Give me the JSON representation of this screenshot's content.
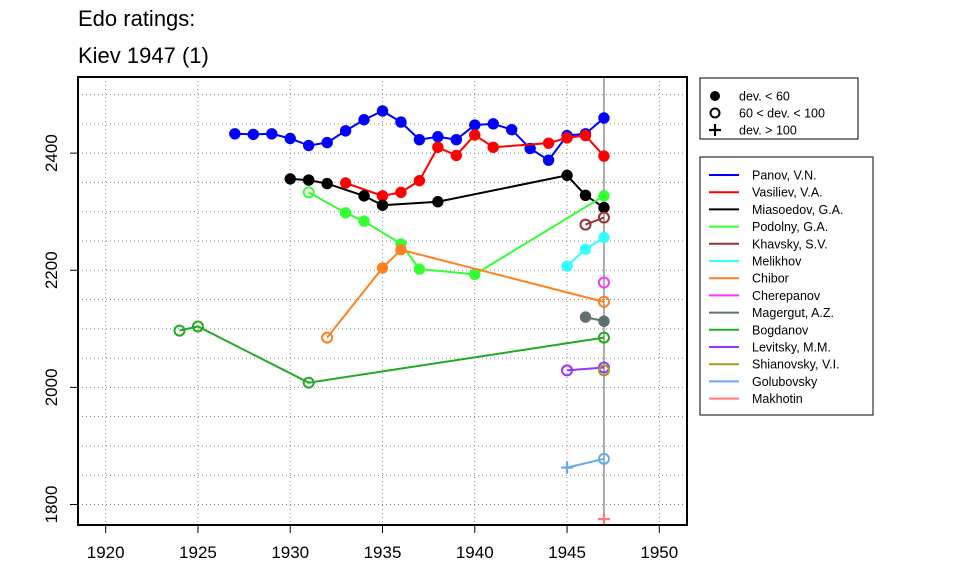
{
  "chart_data": {
    "type": "line",
    "title": [
      "Edo ratings:",
      "Kiev 1947 (1)"
    ],
    "xlabel": "",
    "ylabel": "",
    "xlim": [
      1918.5,
      1951.5
    ],
    "ylim": [
      1765,
      2530
    ],
    "x_ticks": [
      1920,
      1925,
      1930,
      1935,
      1940,
      1945,
      1950
    ],
    "y_ticks": [
      1800,
      2000,
      2200,
      2400
    ],
    "grid": "dotted",
    "vline_x": 1947,
    "legend_marker_placement": "top-right outside",
    "legend_marker": [
      {
        "label": "dev. < 60",
        "marker": "filled-circle"
      },
      {
        "label": "60 < dev. < 100",
        "marker": "open-circle"
      },
      {
        "label": "dev. > 100",
        "marker": "plus"
      }
    ],
    "legend_players_placement": "right outside",
    "series": [
      {
        "name": "Panov, V.N.",
        "color": "#0000ff",
        "points": [
          [
            1927,
            2433,
            "f"
          ],
          [
            1928,
            2432,
            "f"
          ],
          [
            1929,
            2433,
            "f"
          ],
          [
            1930,
            2425,
            "f"
          ],
          [
            1931,
            2413,
            "f"
          ],
          [
            1932,
            2418,
            "f"
          ],
          [
            1933,
            2438,
            "f"
          ],
          [
            1934,
            2457,
            "f"
          ],
          [
            1935,
            2472,
            "f"
          ],
          [
            1936,
            2453,
            "f"
          ],
          [
            1937,
            2423,
            "f"
          ],
          [
            1938,
            2428,
            "f"
          ],
          [
            1939,
            2423,
            "f"
          ],
          [
            1940,
            2448,
            "f"
          ],
          [
            1941,
            2450,
            "f"
          ],
          [
            1942,
            2440,
            "f"
          ],
          [
            1943,
            2408,
            "f"
          ],
          [
            1944,
            2388,
            "f"
          ],
          [
            1945,
            2430,
            "f"
          ],
          [
            1946,
            2433,
            "f"
          ],
          [
            1947,
            2460,
            "f"
          ]
        ]
      },
      {
        "name": "Vasiliev, V.A.",
        "color": "#ff0000",
        "points": [
          [
            1933,
            2349,
            "f"
          ],
          [
            1935,
            2327,
            "f"
          ],
          [
            1936,
            2333,
            "f"
          ],
          [
            1937,
            2353,
            "f"
          ],
          [
            1938,
            2410,
            "f"
          ],
          [
            1939,
            2396,
            "f"
          ],
          [
            1940,
            2431,
            "f"
          ],
          [
            1941,
            2410,
            "f"
          ],
          [
            1944,
            2417,
            "f"
          ],
          [
            1945,
            2426,
            "f"
          ],
          [
            1946,
            2430,
            "f"
          ],
          [
            1947,
            2395,
            "f"
          ]
        ]
      },
      {
        "name": "Miasoedov, G.A.",
        "color": "#000000",
        "points": [
          [
            1930,
            2356,
            "f"
          ],
          [
            1931,
            2354,
            "f"
          ],
          [
            1932,
            2348,
            "f"
          ],
          [
            1934,
            2327,
            "f"
          ],
          [
            1935,
            2311,
            "f"
          ],
          [
            1938,
            2317,
            "f"
          ],
          [
            1945,
            2362,
            "f"
          ],
          [
            1946,
            2328,
            "f"
          ],
          [
            1947,
            2307,
            "f"
          ]
        ]
      },
      {
        "name": "Podolny, G.A.",
        "color": "#33ff33",
        "points": [
          [
            1931,
            2333,
            "o"
          ],
          [
            1933,
            2298,
            "f"
          ],
          [
            1934,
            2284,
            "f"
          ],
          [
            1936,
            2245,
            "f"
          ],
          [
            1937,
            2202,
            "f"
          ],
          [
            1940,
            2193,
            "f"
          ],
          [
            1947,
            2327,
            "f"
          ]
        ]
      },
      {
        "name": "Khavsky, S.V.",
        "color": "#993333",
        "points": [
          [
            1946,
            2278,
            "o"
          ],
          [
            1947,
            2290,
            "o"
          ]
        ]
      },
      {
        "name": "Melikhov",
        "color": "#33ffff",
        "points": [
          [
            1945,
            2207,
            "f"
          ],
          [
            1946,
            2236,
            "f"
          ],
          [
            1947,
            2256,
            "f"
          ]
        ]
      },
      {
        "name": "Chibor",
        "color": "#ff8020",
        "points": [
          [
            1932,
            2085,
            "o"
          ],
          [
            1935,
            2204,
            "f"
          ],
          [
            1936,
            2235,
            "f"
          ],
          [
            1947,
            2146,
            "o"
          ]
        ]
      },
      {
        "name": "Cherepanov",
        "color": "#ff33ff",
        "points": [
          [
            1947,
            2179,
            "o"
          ]
        ]
      },
      {
        "name": "Magergut, A.Z.",
        "color": "#607070",
        "points": [
          [
            1946,
            2120,
            "f"
          ],
          [
            1947,
            2113,
            "f"
          ]
        ]
      },
      {
        "name": "Bogdanov",
        "color": "#22aa22",
        "points": [
          [
            1924,
            2097,
            "o"
          ],
          [
            1925,
            2104,
            "o"
          ],
          [
            1931,
            2008,
            "o"
          ],
          [
            1947,
            2085,
            "o"
          ]
        ]
      },
      {
        "name": "Levitsky, M.M.",
        "color": "#9933ff",
        "points": [
          [
            1945,
            2029,
            "o"
          ],
          [
            1947,
            2034,
            "o"
          ]
        ]
      },
      {
        "name": "Shianovsky, V.I.",
        "color": "#aa9922",
        "points": [
          [
            1947,
            2029,
            "o"
          ]
        ]
      },
      {
        "name": "Golubovsky",
        "color": "#66aaee",
        "points": [
          [
            1945,
            1863,
            "p"
          ],
          [
            1947,
            1878,
            "o"
          ]
        ]
      },
      {
        "name": "Makhotin",
        "color": "#ff7777",
        "points": [
          [
            1947,
            1775,
            "p"
          ]
        ]
      }
    ]
  }
}
